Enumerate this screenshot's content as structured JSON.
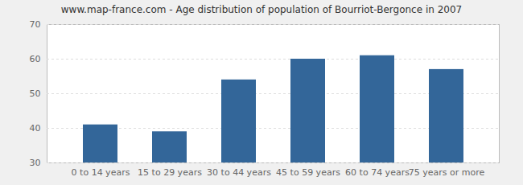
{
  "chart_data": {
    "type": "bar",
    "title": "www.map-france.com - Age distribution of population of Bourriot-Bergonce in 2007",
    "categories": [
      "0 to 14 years",
      "15 to 29 years",
      "30 to 44 years",
      "45 to 59 years",
      "60 to 74 years",
      "75 years or more"
    ],
    "values": [
      41,
      39,
      54,
      60,
      61,
      57
    ],
    "color": "#336699",
    "ylim": [
      30,
      70
    ],
    "yticks": [
      30,
      40,
      50,
      60,
      70
    ],
    "grid": true
  }
}
